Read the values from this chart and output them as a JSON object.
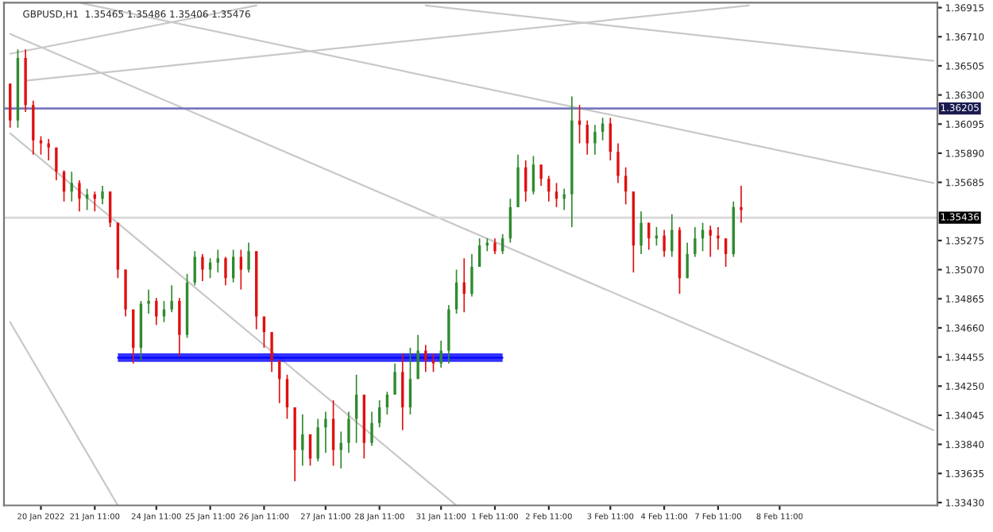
{
  "chart_data": {
    "type": "candlestick",
    "title": "GBPUSD,H1  1.35465 1.35486 1.35406 1.35476",
    "colors": [
      "#e01010",
      "#2e8b2e",
      "#e01010",
      "#e01010",
      "#e01010",
      "#e01010",
      "#e01010",
      "#e01010",
      "#2e8b2e",
      "#e01010",
      "#2e8b2e",
      "#e01010",
      "#2e8b2e",
      "#e01010",
      "#e01010",
      "#e01010",
      "#e01010",
      "#2e8b2e",
      "#2e8b2e",
      "#e01010",
      "#2e8b2e",
      "#2e8b2e",
      "#e01010",
      "#2e8b2e",
      "#2e8b2e",
      "#e01010",
      "#2e8b2e",
      "#2e8b2e",
      "#e01010",
      "#2e8b2e",
      "#e01010",
      "#2e8b2e",
      "#e01010",
      "#e01010",
      "#e01010",
      "#e01010",
      "#e01010",
      "#e01010",
      "#2e8b2e",
      "#e01010",
      "#2e8b2e",
      "#2e8b2e",
      "#e01010",
      "#2e8b2e",
      "#2e8b2e",
      "#2e8b2e",
      "#e01010",
      "#2e8b2e",
      "#2e8b2e",
      "#2e8b2e",
      "#2e8b2e",
      "#e01010",
      "#2e8b2e",
      "#2e8b2e",
      "#e01010",
      "#e01010",
      "#2e8b2e",
      "#2e8b2e",
      "#2e8b2e",
      "#e01010",
      "#2e8b2e",
      "#2e8b2e",
      "#2e8b2e",
      "#e01010",
      "#2e8b2e",
      "#2e8b2e",
      "#2e8b2e",
      "#e01010",
      "#2e8b2e",
      "#e01010",
      "#e01010",
      "#e01010",
      "#2e8b2e",
      "#2e8b2e",
      "#e01010",
      "#e01010",
      "#2e8b2e",
      "#2e8b2e",
      "#e01010",
      "#e01010",
      "#e01010",
      "#e01010",
      "#2e8b2e",
      "#e01010",
      "#2e8b2e",
      "#e01010",
      "#2e8b2e",
      "#e01010",
      "#2e8b2e",
      "#2e8b2e",
      "#2e8b2e",
      "#e01010",
      "#e01010",
      "#e01010",
      "#2e8b2e",
      "#e01010",
      null,
      null,
      null,
      null,
      null,
      null,
      null,
      null,
      null,
      null,
      null,
      null,
      null,
      null,
      null,
      null,
      null,
      null,
      null,
      null,
      null,
      null,
      null,
      null,
      null
    ],
    "categories": [
      null,
      null,
      null,
      null,
      "20 Jan 2022",
      null,
      null,
      null,
      null,
      null,
      null,
      "21 Jan 11:00",
      null,
      null,
      null,
      null,
      null,
      null,
      null,
      "24 Jan 11:00",
      null,
      null,
      null,
      null,
      null,
      null,
      "25 Jan 11:00",
      null,
      null,
      null,
      null,
      null,
      null,
      "26 Jan 11:00",
      null,
      null,
      null,
      null,
      null,
      null,
      null,
      "27 Jan 11:00",
      null,
      null,
      null,
      null,
      null,
      null,
      "28 Jan 11:00",
      null,
      null,
      null,
      null,
      null,
      null,
      null,
      "31 Jan 11:00",
      null,
      null,
      null,
      null,
      null,
      null,
      "1 Feb 11:00",
      null,
      null,
      null,
      null,
      null,
      null,
      "2 Feb 11:00",
      null,
      null,
      null,
      null,
      null,
      null,
      null,
      "3 Feb 11:00",
      null,
      null,
      null,
      null,
      null,
      null,
      "4 Feb 11:00",
      null,
      null,
      null,
      null,
      null,
      null,
      "7 Feb 11:00",
      null,
      null,
      null,
      null,
      null,
      null,
      null,
      "8 Feb 11:00",
      null,
      null,
      null,
      null,
      null,
      null,
      null,
      null,
      null,
      null,
      null,
      null,
      null,
      null,
      null,
      null,
      null,
      null,
      null,
      null
    ],
    "ohlc": [
      [
        1.3638,
        1.3638,
        1.3607,
        1.3612
      ],
      [
        1.3612,
        1.3662,
        1.3607,
        1.3656
      ],
      [
        1.3656,
        1.3662,
        1.3618,
        1.3623
      ],
      [
        1.3623,
        1.3626,
        1.3588,
        1.3598
      ],
      [
        1.3598,
        1.3601,
        1.3588,
        1.3596
      ],
      [
        1.3596,
        1.3599,
        1.3584,
        1.3593
      ],
      [
        1.3593,
        1.3593,
        1.357,
        1.3576
      ],
      [
        1.3576,
        1.3577,
        1.3555,
        1.3562
      ],
      [
        1.3562,
        1.3576,
        1.3555,
        1.3568
      ],
      [
        1.3568,
        1.357,
        1.3548,
        1.3557
      ],
      [
        1.3557,
        1.3564,
        1.3549,
        1.356
      ],
      [
        1.356,
        1.3562,
        1.3548,
        1.3557
      ],
      [
        1.3557,
        1.3566,
        1.3553,
        1.3562
      ],
      [
        1.3562,
        1.3562,
        1.3537,
        1.354
      ],
      [
        1.354,
        1.354,
        1.3501,
        1.3507
      ],
      [
        1.3507,
        1.3507,
        1.3474,
        1.3479
      ],
      [
        1.3479,
        1.3479,
        1.3441,
        1.3452
      ],
      [
        1.3452,
        1.3485,
        1.3443,
        1.3483
      ],
      [
        1.3483,
        1.3493,
        1.3476,
        1.3485
      ],
      [
        1.3485,
        1.3487,
        1.3468,
        1.3474
      ],
      [
        1.3474,
        1.3485,
        1.347,
        1.3479
      ],
      [
        1.3479,
        1.3496,
        1.3477,
        1.3485
      ],
      [
        1.3485,
        1.3487,
        1.3446,
        1.3461
      ],
      [
        1.3461,
        1.3504,
        1.3459,
        1.3498
      ],
      [
        1.3498,
        1.352,
        1.3496,
        1.3516
      ],
      [
        1.3516,
        1.3518,
        1.3499,
        1.3507
      ],
      [
        1.3507,
        1.3515,
        1.3501,
        1.3512
      ],
      [
        1.3512,
        1.3521,
        1.3505,
        1.3515
      ],
      [
        1.3515,
        1.3516,
        1.3496,
        1.3501
      ],
      [
        1.3501,
        1.3521,
        1.3498,
        1.3516
      ],
      [
        1.3516,
        1.3521,
        1.3493,
        1.3507
      ],
      [
        1.3507,
        1.3526,
        1.3505,
        1.352
      ],
      [
        1.352,
        1.352,
        1.3465,
        1.3474
      ],
      [
        1.3474,
        1.3474,
        1.3452,
        1.3463
      ],
      [
        1.3463,
        1.3463,
        1.3435,
        1.3443
      ],
      [
        1.3443,
        1.3443,
        1.3413,
        1.343
      ],
      [
        1.343,
        1.3433,
        1.3402,
        1.341
      ],
      [
        1.341,
        1.341,
        1.3358,
        1.338
      ],
      [
        1.338,
        1.3405,
        1.3369,
        1.3391
      ],
      [
        1.3391,
        1.3391,
        1.3369,
        1.3374
      ],
      [
        1.3374,
        1.3402,
        1.3372,
        1.3396
      ],
      [
        1.3396,
        1.3407,
        1.3378,
        1.3402
      ],
      [
        1.3402,
        1.3415,
        1.3369,
        1.338
      ],
      [
        1.338,
        1.3393,
        1.3367,
        1.3385
      ],
      [
        1.3385,
        1.3407,
        1.3378,
        1.3402
      ],
      [
        1.3402,
        1.3433,
        1.3385,
        1.3419
      ],
      [
        1.3419,
        1.3419,
        1.3374,
        1.3385
      ],
      [
        1.3385,
        1.3407,
        1.3383,
        1.3399
      ],
      [
        1.3399,
        1.3415,
        1.3396,
        1.341
      ],
      [
        1.341,
        1.3421,
        1.3405,
        1.3419
      ],
      [
        1.3419,
        1.3441,
        1.3419,
        1.3435
      ],
      [
        1.3435,
        1.3448,
        1.3394,
        1.341
      ],
      [
        1.341,
        1.3452,
        1.3405,
        1.343
      ],
      [
        1.343,
        1.3461,
        1.343,
        1.345
      ],
      [
        1.345,
        1.3454,
        1.3435,
        1.3443
      ],
      [
        1.3443,
        1.3448,
        1.3435,
        1.3441
      ],
      [
        1.3441,
        1.3457,
        1.3438,
        1.345
      ],
      [
        1.345,
        1.3482,
        1.3441,
        1.3479
      ],
      [
        1.3479,
        1.3507,
        1.3476,
        1.3498
      ],
      [
        1.3498,
        1.3515,
        1.3477,
        1.349
      ],
      [
        1.349,
        1.3518,
        1.3488,
        1.3509
      ],
      [
        1.3509,
        1.3529,
        1.3509,
        1.3524
      ],
      [
        1.3524,
        1.3529,
        1.352,
        1.3526
      ],
      [
        1.3526,
        1.3529,
        1.3518,
        1.352
      ],
      [
        1.352,
        1.3532,
        1.3518,
        1.3529
      ],
      [
        1.3529,
        1.3557,
        1.3526,
        1.3551
      ],
      [
        1.3551,
        1.3588,
        1.3551,
        1.3579
      ],
      [
        1.3579,
        1.3584,
        1.3555,
        1.3562
      ],
      [
        1.3562,
        1.3587,
        1.356,
        1.3581
      ],
      [
        1.3581,
        1.3581,
        1.3566,
        1.3571
      ],
      [
        1.3571,
        1.3573,
        1.3555,
        1.3562
      ],
      [
        1.3562,
        1.3568,
        1.3551,
        1.3557
      ],
      [
        1.3557,
        1.3564,
        1.3549,
        1.356
      ],
      [
        1.356,
        1.3629,
        1.3537,
        1.3612
      ],
      [
        1.3612,
        1.3623,
        1.3596,
        1.3609
      ],
      [
        1.3609,
        1.3612,
        1.3588,
        1.3596
      ],
      [
        1.3596,
        1.3609,
        1.3588,
        1.3604
      ],
      [
        1.3604,
        1.3614,
        1.3598,
        1.361
      ],
      [
        1.361,
        1.3614,
        1.3584,
        1.359
      ],
      [
        1.359,
        1.3596,
        1.3568,
        1.3573
      ],
      [
        1.3573,
        1.3579,
        1.3553,
        1.3562
      ],
      [
        1.3562,
        1.3562,
        1.3505,
        1.3524
      ],
      [
        1.3524,
        1.3548,
        1.3518,
        1.354
      ],
      [
        1.354,
        1.354,
        1.3521,
        1.3529
      ],
      [
        1.3529,
        1.3537,
        1.3524,
        1.3531
      ],
      [
        1.3531,
        1.3535,
        1.3516,
        1.352
      ],
      [
        1.352,
        1.3546,
        1.3516,
        1.3535
      ],
      [
        1.3535,
        1.3537,
        1.349,
        1.3501
      ],
      [
        1.3501,
        1.3526,
        1.3501,
        1.3518
      ],
      [
        1.3518,
        1.3537,
        1.3516,
        1.3529
      ],
      [
        1.3529,
        1.354,
        1.352,
        1.3535
      ],
      [
        1.3535,
        1.3538,
        1.3516,
        1.3531
      ],
      [
        1.3531,
        1.3537,
        1.3521,
        1.3529
      ],
      [
        1.3529,
        1.3529,
        1.3509,
        1.3518
      ],
      [
        1.3518,
        1.3555,
        1.3516,
        1.3551
      ],
      [
        1.3551,
        1.3566,
        1.354,
        1.3549
      ],
      null,
      null,
      null,
      null,
      null,
      null,
      null,
      null,
      null,
      null,
      null,
      null,
      null,
      null,
      null,
      null,
      null,
      null,
      null,
      null,
      null,
      null,
      null,
      null,
      null
    ],
    "series": [
      {
        "type": "line",
        "color": "#c8c8c8",
        "values": [
          null,
          null,
          1.364,
          null,
          null,
          null,
          null,
          null,
          null,
          null,
          null,
          null,
          null,
          null,
          null,
          null,
          null,
          null,
          null,
          null,
          null,
          null,
          null,
          null,
          null,
          null,
          null,
          null,
          null,
          null,
          null,
          null,
          null,
          null,
          null,
          null,
          null,
          null,
          null,
          null,
          null,
          null,
          null,
          null,
          null,
          null,
          null,
          null,
          null,
          null,
          null,
          null,
          null,
          null,
          null,
          null,
          null,
          null,
          null,
          null,
          null,
          null,
          null,
          null,
          null,
          null,
          null,
          null,
          null,
          null,
          null,
          null,
          null,
          null,
          null,
          null,
          null,
          null,
          null,
          null,
          null,
          null,
          null,
          null,
          null,
          null,
          null,
          null,
          null,
          null,
          null,
          null,
          null,
          null,
          null,
          null,
          1.3693,
          null,
          null,
          null,
          null,
          null,
          null,
          null,
          null,
          null,
          null,
          null,
          null,
          null,
          null,
          null,
          null,
          null,
          null,
          null,
          null,
          null,
          null,
          null,
          null
        ]
      },
      {
        "type": "line",
        "color": "#c8c8c8",
        "values": [
          1.3673,
          null,
          null,
          null,
          null,
          null,
          null,
          null,
          null,
          null,
          null,
          null,
          null,
          null,
          null,
          null,
          null,
          null,
          null,
          null,
          null,
          null,
          null,
          null,
          null,
          null,
          null,
          null,
          null,
          null,
          null,
          null,
          null,
          null,
          null,
          null,
          null,
          null,
          null,
          null,
          null,
          null,
          null,
          null,
          null,
          null,
          null,
          null,
          null,
          null,
          null,
          null,
          null,
          null,
          null,
          null,
          null,
          null,
          null,
          null,
          null,
          null,
          null,
          null,
          null,
          null,
          null,
          null,
          null,
          null,
          null,
          null,
          null,
          null,
          null,
          null,
          null,
          null,
          null,
          null,
          null,
          null,
          null,
          null,
          null,
          null,
          null,
          null,
          null,
          null,
          null,
          null,
          null,
          null,
          null,
          null,
          null,
          null,
          null,
          null,
          null,
          null,
          null,
          null,
          null,
          null,
          null,
          null,
          null,
          null,
          null,
          null,
          null,
          null,
          null,
          null,
          null,
          null,
          null,
          null,
          1.3394
        ]
      },
      {
        "type": "line",
        "color": "#c8c8c8",
        "values": [
          null,
          null,
          null,
          null,
          null,
          null,
          null,
          null,
          null,
          null,
          null,
          null,
          null,
          null,
          null,
          null,
          null,
          null,
          null,
          null,
          null,
          null,
          null,
          null,
          null,
          null,
          null,
          null,
          null,
          null,
          null,
          null,
          null,
          null,
          null,
          null,
          null,
          null,
          null,
          null,
          null,
          null,
          null,
          null,
          null,
          null,
          null,
          null,
          null,
          null,
          null,
          null,
          null,
          null,
          1.3693,
          null,
          null,
          null,
          null,
          null,
          null,
          null,
          null,
          null,
          null,
          null,
          null,
          null,
          null,
          null,
          null,
          null,
          null,
          null,
          null,
          null,
          null,
          null,
          null,
          null,
          null,
          null,
          null,
          null,
          null,
          null,
          null,
          null,
          null,
          null,
          null,
          null,
          null,
          null,
          null,
          null,
          null,
          null,
          null,
          null,
          null,
          null,
          null,
          null,
          null,
          null,
          null,
          null,
          null,
          null,
          null,
          null,
          null,
          null,
          null,
          null,
          null,
          null,
          null,
          null,
          1.3654
        ]
      },
      {
        "type": "line",
        "color": "#c8c8c8",
        "values": [
          null,
          null,
          null,
          null,
          null,
          null,
          null,
          null,
          null,
          1.3695,
          null,
          null,
          null,
          null,
          null,
          null,
          null,
          null,
          null,
          null,
          null,
          null,
          null,
          null,
          null,
          null,
          null,
          null,
          null,
          null,
          null,
          null,
          null,
          null,
          null,
          null,
          null,
          null,
          null,
          null,
          null,
          null,
          null,
          null,
          null,
          null,
          null,
          null,
          null,
          null,
          null,
          null,
          null,
          null,
          null,
          null,
          null,
          null,
          null,
          null,
          null,
          null,
          null,
          null,
          null,
          null,
          null,
          null,
          null,
          null,
          null,
          null,
          null,
          null,
          null,
          null,
          null,
          null,
          null,
          null,
          null,
          null,
          null,
          null,
          null,
          null,
          null,
          null,
          null,
          null,
          null,
          null,
          null,
          null,
          null,
          null,
          null,
          null,
          null,
          null,
          null,
          null,
          null,
          null,
          null,
          null,
          null,
          null,
          null,
          null,
          null,
          null,
          null,
          null,
          null,
          null,
          null,
          null,
          null,
          null,
          1.3568
        ]
      },
      {
        "type": "line",
        "color": "#c8c8c8",
        "values": [
          1.3603,
          null,
          null,
          null,
          null,
          null,
          null,
          null,
          null,
          null,
          null,
          null,
          null,
          null,
          null,
          null,
          null,
          null,
          null,
          null,
          null,
          null,
          null,
          null,
          null,
          null,
          null,
          null,
          null,
          null,
          null,
          null,
          null,
          null,
          null,
          null,
          null,
          null,
          null,
          null,
          null,
          null,
          null,
          null,
          null,
          null,
          null,
          null,
          null,
          null,
          null,
          null,
          null,
          null,
          null,
          null,
          null,
          null,
          1.3341,
          null,
          null,
          null,
          null,
          null,
          null,
          null,
          null,
          null,
          null,
          null,
          null,
          null,
          null,
          null,
          null,
          null,
          null,
          null,
          null,
          null,
          null,
          null,
          null,
          null,
          null,
          null,
          null,
          null,
          null,
          null,
          null,
          null,
          null,
          null,
          null,
          null,
          null,
          null,
          null,
          null,
          null,
          null,
          null,
          null,
          null,
          null,
          null,
          null,
          null,
          null,
          null,
          null,
          null,
          null,
          null,
          null,
          null,
          null,
          null,
          null,
          null
        ]
      },
      {
        "type": "line",
        "color": "#c8c8c8",
        "values": [
          1.347,
          null,
          null,
          null,
          null,
          null,
          null,
          null,
          null,
          null,
          null,
          null,
          null,
          null,
          1.3341,
          null,
          null,
          null,
          null,
          null,
          null,
          null,
          null,
          null,
          null,
          null,
          null,
          null,
          null,
          null,
          null,
          null,
          null,
          null,
          null,
          null,
          null,
          null,
          null,
          null,
          null,
          null,
          null,
          null,
          null,
          null,
          null,
          null,
          null,
          null,
          null,
          null,
          null,
          null,
          null,
          null,
          null,
          null,
          null,
          null,
          null,
          null,
          null,
          null,
          null,
          null,
          null,
          null,
          null,
          null,
          null,
          null,
          null,
          null,
          null,
          null,
          null,
          null,
          null,
          null,
          null,
          null,
          null,
          null,
          null,
          null,
          null,
          null,
          null,
          null,
          null,
          null,
          null,
          null,
          null,
          null,
          null,
          null,
          null,
          null,
          null,
          null,
          null,
          null,
          null,
          null,
          null,
          null,
          null,
          null,
          null,
          null,
          null,
          null,
          null,
          null,
          null,
          null,
          null,
          null,
          null
        ]
      },
      {
        "type": "line",
        "color": "#c8c8c8",
        "values": [
          1.3659,
          null,
          null,
          null,
          null,
          null,
          null,
          null,
          null,
          null,
          null,
          null,
          null,
          null,
          null,
          null,
          null,
          null,
          null,
          null,
          null,
          null,
          null,
          null,
          null,
          null,
          null,
          null,
          null,
          null,
          null,
          null,
          1.3693,
          null,
          null,
          null,
          null,
          null,
          null,
          null,
          null,
          null,
          null,
          null,
          null,
          null,
          null,
          null,
          null,
          null,
          null,
          null,
          null,
          null,
          null,
          null,
          null,
          null,
          null,
          null,
          null,
          null,
          null,
          null,
          null,
          null,
          null,
          null,
          null,
          null,
          null,
          null,
          null,
          null,
          null,
          null,
          null,
          null,
          null,
          null,
          null,
          null,
          null,
          null,
          null,
          null,
          null,
          null,
          null,
          null,
          null,
          null,
          null,
          null,
          null,
          null,
          null,
          null,
          null,
          null,
          null,
          null,
          null,
          null,
          null,
          null,
          null,
          null,
          null,
          null,
          null,
          null,
          null,
          null,
          null,
          null,
          null,
          null,
          null,
          null,
          null
        ]
      },
      {
        "type": "line",
        "color": "#0000ff",
        "values": [
          null,
          null,
          null,
          null,
          null,
          null,
          null,
          null,
          null,
          null,
          null,
          null,
          null,
          null,
          1.3445,
          null,
          null,
          null,
          null,
          null,
          null,
          null,
          null,
          null,
          null,
          null,
          null,
          null,
          null,
          null,
          null,
          null,
          null,
          null,
          null,
          null,
          null,
          null,
          null,
          null,
          null,
          null,
          null,
          null,
          null,
          null,
          null,
          null,
          null,
          null,
          null,
          null,
          null,
          null,
          null,
          null,
          null,
          null,
          null,
          null,
          null,
          null,
          null,
          null,
          1.3445,
          null,
          null,
          null,
          null,
          null,
          null,
          null,
          null,
          null,
          null,
          null,
          null,
          null,
          null,
          null,
          null,
          null,
          null,
          null,
          null,
          null,
          null,
          null,
          null,
          null,
          null,
          null,
          null,
          null,
          null,
          null,
          null,
          null,
          null,
          null,
          null,
          null,
          null,
          null,
          null,
          null,
          null,
          null,
          null,
          null,
          null,
          null,
          null,
          null,
          null,
          null,
          null,
          null,
          null,
          null,
          null
        ],
        "lower": [
          null,
          null,
          null,
          null,
          null,
          null,
          null,
          null,
          null,
          null,
          null,
          null,
          null,
          null,
          1.3442,
          null,
          null,
          null,
          null,
          null,
          null,
          null,
          null,
          null,
          null,
          null,
          null,
          null,
          null,
          null,
          null,
          null,
          null,
          null,
          null,
          null,
          null,
          null,
          null,
          null,
          null,
          null,
          null,
          null,
          null,
          null,
          null,
          null,
          null,
          null,
          null,
          null,
          null,
          null,
          null,
          null,
          null,
          null,
          null,
          null,
          null,
          null,
          null,
          null,
          1.3442,
          null,
          null,
          null,
          null,
          null,
          null,
          null,
          null,
          null,
          null,
          null,
          null,
          null,
          null,
          null,
          null,
          null,
          null,
          null,
          null,
          null,
          null,
          null,
          null,
          null,
          null,
          null,
          null,
          null,
          null,
          null,
          null,
          null,
          null,
          null,
          null,
          null,
          null,
          null,
          null,
          null,
          null,
          null,
          null,
          null,
          null,
          null,
          null,
          null,
          null,
          null,
          null,
          null,
          null,
          null,
          null
        ],
        "upper": [
          null,
          null,
          null,
          null,
          null,
          null,
          null,
          null,
          null,
          null,
          null,
          null,
          null,
          null,
          1.3448,
          null,
          null,
          null,
          null,
          null,
          null,
          null,
          null,
          null,
          null,
          null,
          null,
          null,
          null,
          null,
          null,
          null,
          null,
          null,
          null,
          null,
          null,
          null,
          null,
          null,
          null,
          null,
          null,
          null,
          null,
          null,
          null,
          null,
          null,
          null,
          null,
          null,
          null,
          null,
          null,
          null,
          null,
          null,
          null,
          null,
          null,
          null,
          null,
          null,
          1.3448,
          null,
          null,
          null,
          null,
          null,
          null,
          null,
          null,
          null,
          null,
          null,
          null,
          null,
          null,
          null,
          null,
          null,
          null,
          null,
          null,
          null,
          null,
          null,
          null,
          null,
          null,
          null,
          null,
          null,
          null,
          null,
          null,
          null,
          null,
          null,
          null,
          null,
          null,
          null,
          null,
          null,
          null,
          null,
          null,
          null,
          null,
          null,
          null,
          null,
          null,
          null,
          null,
          null,
          null,
          null,
          null
        ]
      }
    ],
    "ref_lines": [
      {
        "axis": "y",
        "value": 1.36205,
        "label": "1.36205",
        "color": "#7878c0"
      },
      {
        "axis": "y",
        "value": 1.35436,
        "label": "1.35436",
        "color": "#d8d8d8"
      }
    ],
    "ylim": [
      1.3341,
      1.3695
    ],
    "yticks": [
      {
        "value": 1.36915,
        "label": "1.36915"
      },
      {
        "value": 1.3671,
        "label": "1.36710"
      },
      {
        "value": 1.36505,
        "label": "1.36505"
      },
      {
        "value": 1.363,
        "label": "1.36300"
      },
      {
        "value": 1.36095,
        "label": "1.36095"
      },
      {
        "value": 1.3589,
        "label": "1.35890"
      },
      {
        "value": 1.35685,
        "label": "1.35685"
      },
      {
        "value": 1.35275,
        "label": "1.35275"
      },
      {
        "value": 1.3507,
        "label": "1.35070"
      },
      {
        "value": 1.34865,
        "label": "1.34865"
      },
      {
        "value": 1.3466,
        "label": "1.34660"
      },
      {
        "value": 1.34455,
        "label": "1.34455"
      },
      {
        "value": 1.3425,
        "label": "1.34250"
      },
      {
        "value": 1.34045,
        "label": "1.34045"
      },
      {
        "value": 1.3384,
        "label": "1.33840"
      },
      {
        "value": 1.33635,
        "label": "1.33635"
      },
      {
        "value": 1.3343,
        "label": "1.33430"
      }
    ],
    "grid": false,
    "legend": false
  }
}
